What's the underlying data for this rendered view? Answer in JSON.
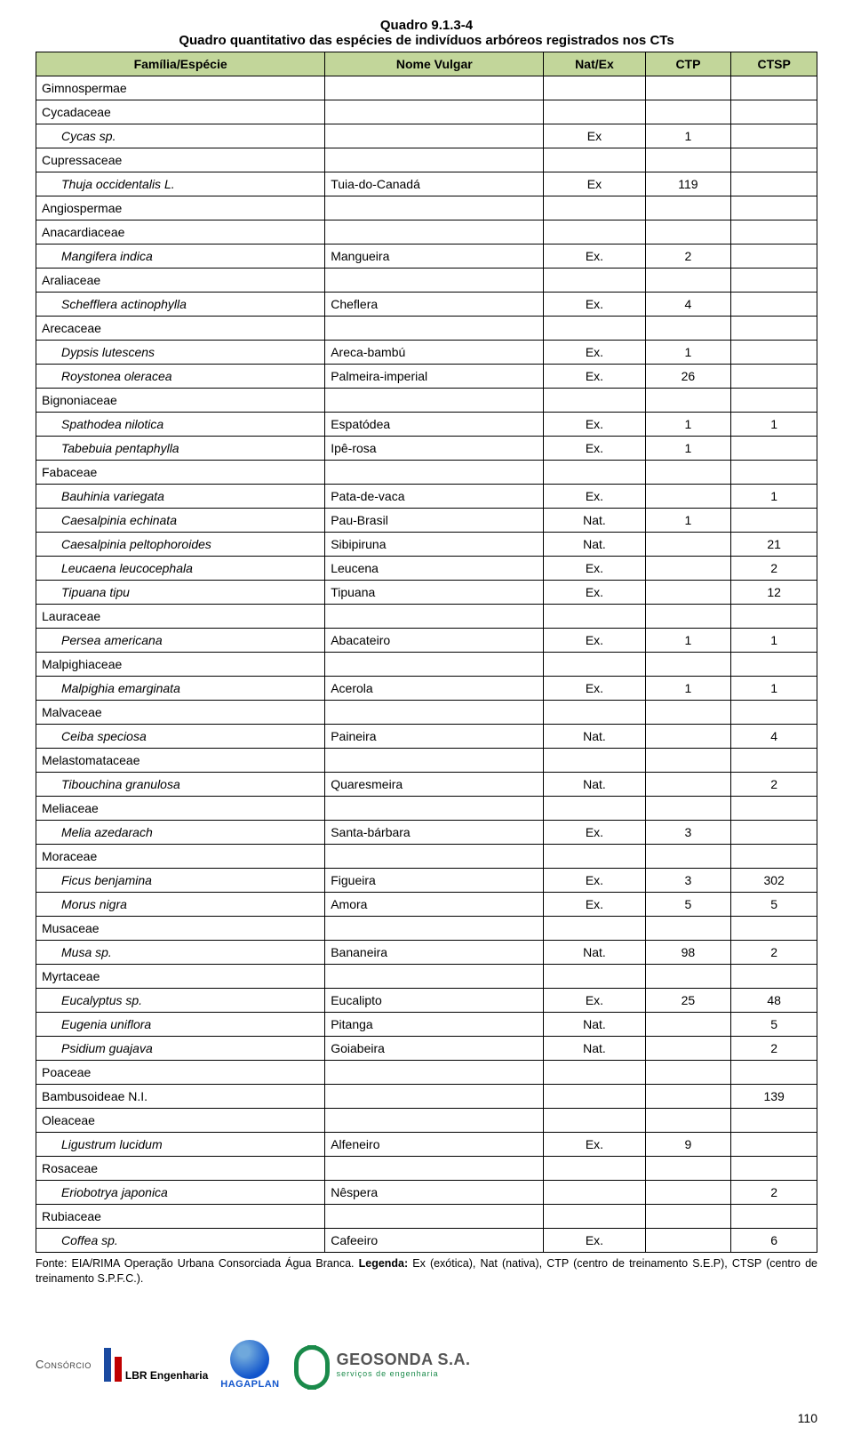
{
  "title_code": "Quadro 9.1.3-4",
  "title_desc": "Quadro quantitativo das espécies de indivíduos arbóreos registrados nos CTs",
  "headers": {
    "family": "Família/Espécie",
    "vulgar": "Nome Vulgar",
    "natex": "Nat/Ex",
    "ctp": "CTP",
    "ctsp": "CTSP"
  },
  "header_bg": "#c2d69a",
  "rows": [
    {
      "family": "Gimnospermae"
    },
    {
      "family": "Cycadaceae"
    },
    {
      "species": "Cycas sp.",
      "natex": "Ex",
      "ctp": "1"
    },
    {
      "family": "Cupressaceae"
    },
    {
      "species": "Thuja occidentalis L.",
      "vulgar": "Tuia-do-Canadá",
      "natex": "Ex",
      "ctp": "119"
    },
    {
      "family": "Angiospermae"
    },
    {
      "family": "Anacardiaceae"
    },
    {
      "species": "Mangifera indica",
      "vulgar": "Mangueira",
      "natex": "Ex.",
      "ctp": "2"
    },
    {
      "family": "Araliaceae"
    },
    {
      "species": "Schefflera actinophylla",
      "vulgar": "Cheflera",
      "natex": "Ex.",
      "ctp": "4"
    },
    {
      "family": "Arecaceae"
    },
    {
      "species": "Dypsis lutescens",
      "vulgar": "Areca-bambú",
      "natex": "Ex.",
      "ctp": "1"
    },
    {
      "species": "Roystonea oleracea",
      "vulgar": "Palmeira-imperial",
      "natex": "Ex.",
      "ctp": "26"
    },
    {
      "family": "Bignoniaceae"
    },
    {
      "species": "Spathodea nilotica",
      "vulgar": "Espatódea",
      "natex": "Ex.",
      "ctp": "1",
      "ctsp": "1"
    },
    {
      "species": "Tabebuia pentaphylla",
      "vulgar": "Ipê-rosa",
      "natex": "Ex.",
      "ctp": "1"
    },
    {
      "family": "Fabaceae"
    },
    {
      "species": "Bauhinia variegata",
      "vulgar": "Pata-de-vaca",
      "natex": "Ex.",
      "ctsp": "1"
    },
    {
      "species": "Caesalpinia echinata",
      "vulgar": "Pau-Brasil",
      "natex": "Nat.",
      "ctp": "1"
    },
    {
      "species": "Caesalpinia peltophoroides",
      "vulgar": "Sibipiruna",
      "natex": "Nat.",
      "ctsp": "21"
    },
    {
      "species": "Leucaena leucocephala",
      "vulgar": "Leucena",
      "natex": "Ex.",
      "ctsp": "2"
    },
    {
      "species": "Tipuana tipu",
      "vulgar": "Tipuana",
      "natex": "Ex.",
      "ctsp": "12"
    },
    {
      "family": "Lauraceae"
    },
    {
      "species": "Persea americana",
      "vulgar": "Abacateiro",
      "natex": "Ex.",
      "ctp": "1",
      "ctsp": "1"
    },
    {
      "family": "Malpighiaceae"
    },
    {
      "species": "Malpighia emarginata",
      "vulgar": "Acerola",
      "natex": "Ex.",
      "ctp": "1",
      "ctsp": "1"
    },
    {
      "family": "Malvaceae"
    },
    {
      "species": "Ceiba speciosa",
      "vulgar": "Paineira",
      "natex": "Nat.",
      "ctsp": "4"
    },
    {
      "family": "Melastomataceae"
    },
    {
      "species": "Tibouchina granulosa",
      "vulgar": "Quaresmeira",
      "natex": "Nat.",
      "ctsp": "2"
    },
    {
      "family": "Meliaceae"
    },
    {
      "species": "Melia azedarach",
      "vulgar": "Santa-bárbara",
      "natex": "Ex.",
      "ctp": "3"
    },
    {
      "family": "Moraceae"
    },
    {
      "species": "Ficus benjamina",
      "vulgar": "Figueira",
      "natex": "Ex.",
      "ctp": "3",
      "ctsp": "302"
    },
    {
      "species": "Morus nigra",
      "vulgar": "Amora",
      "natex": "Ex.",
      "ctp": "5",
      "ctsp": "5"
    },
    {
      "family": "Musaceae"
    },
    {
      "species": "Musa sp.",
      "vulgar": "Bananeira",
      "natex": "Nat.",
      "ctp": "98",
      "ctsp": "2"
    },
    {
      "family": "Myrtaceae"
    },
    {
      "species": "Eucalyptus sp.",
      "vulgar": "Eucalipto",
      "natex": "Ex.",
      "ctp": "25",
      "ctsp": "48"
    },
    {
      "species": "Eugenia uniflora",
      "vulgar": "Pitanga",
      "natex": "Nat.",
      "ctsp": "5"
    },
    {
      "species": "Psidium guajava",
      "vulgar": "Goiabeira",
      "natex": "Nat.",
      "ctsp": "2"
    },
    {
      "family": "Poaceae"
    },
    {
      "family": "Bambusoideae N.I.",
      "ctsp": "139"
    },
    {
      "family": "Oleaceae"
    },
    {
      "species": "Ligustrum lucidum",
      "vulgar": "Alfeneiro",
      "natex": "Ex.",
      "ctp": "9"
    },
    {
      "family": "Rosaceae"
    },
    {
      "species": "Eriobotrya japonica",
      "vulgar": "Nêspera",
      "ctsp": "2"
    },
    {
      "family": "Rubiaceae"
    },
    {
      "species": "Coffea sp.",
      "vulgar": "Cafeeiro",
      "natex": "Ex.",
      "ctsp": "6"
    }
  ],
  "footnote_prefix": "Fonte: EIA/RIMA Operação Urbana Consorciada Água Branca. ",
  "footnote_bold": "Legenda:",
  "footnote_rest": " Ex (exótica), Nat (nativa), CTP (centro de treinamento S.E.P), CTSP (centro de treinamento S.P.F.C.).",
  "footer": {
    "consorcio": "Consórcio",
    "lbr": "LBR Engenharia",
    "haga": "HAGAPLAN",
    "geo_name": "GEOSONDA S.A.",
    "geo_sub": "serviços de engenharia"
  },
  "page_num": "110"
}
